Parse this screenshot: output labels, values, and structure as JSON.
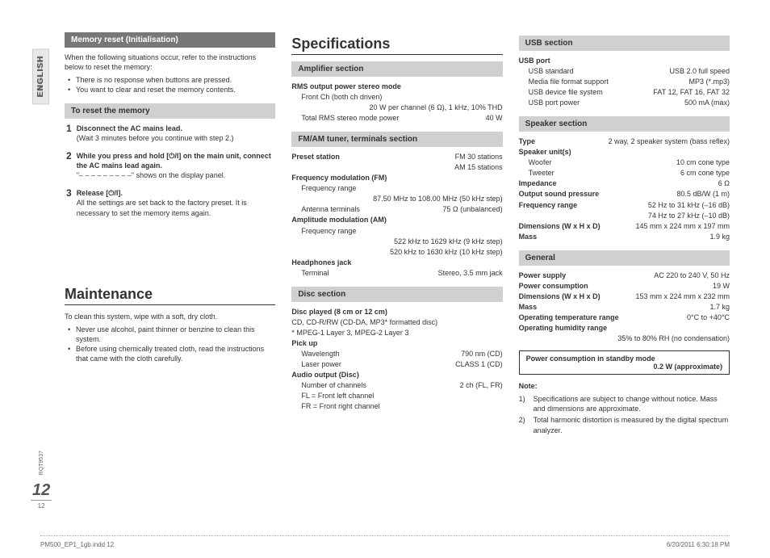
{
  "langTab": "ENGLISH",
  "col1": {
    "memReset": {
      "banner": "Memory reset (Initialisation)",
      "intro": "When the following situations occur, refer to the instructions below to reset the memory:",
      "bullets": [
        "There is no response when buttons are pressed.",
        "You want to clear and reset the memory contents."
      ],
      "subBanner": "To reset the memory",
      "steps": [
        {
          "n": "1",
          "bold": "Disconnect the AC mains lead.",
          "rest": "(Wait 3 minutes before you continue with step 2.)"
        },
        {
          "n": "2",
          "bold": "While you press and hold [⏻/I] on the main unit, connect the AC mains lead again.",
          "rest": "\"– – – – – – – – –\" shows on the display panel."
        },
        {
          "n": "3",
          "bold": "Release [⏻/I].",
          "rest": "All the settings are set back to the factory preset. It is necessary to set the memory items again."
        }
      ]
    },
    "maint": {
      "heading": "Maintenance",
      "intro": "To clean this system, wipe with a soft, dry cloth.",
      "bullets": [
        "Never use alcohol, paint thinner or benzine to clean this system.",
        "Before using chemically treated cloth, read the instructions that came with the cloth carefully."
      ]
    }
  },
  "col2": {
    "heading": "Specifications",
    "amp": {
      "banner": "Amplifier section",
      "rows": [
        {
          "l": "RMS output power stereo mode",
          "cls": "spec-head"
        },
        {
          "l": "Front Ch (both ch driven)",
          "cls": "indent"
        },
        {
          "r": "20 W per channel (6 Ω), 1 kHz, 10% THD"
        },
        {
          "l": "Total RMS stereo mode power",
          "r": "40 W",
          "cls": "indent"
        }
      ]
    },
    "tuner": {
      "banner": "FM/AM tuner, terminals section",
      "rows": [
        {
          "l": "Preset station",
          "r": "FM 30 stations",
          "cls": "spec-head"
        },
        {
          "r": "AM 15 stations"
        },
        {
          "l": "Frequency modulation (FM)",
          "cls": "spec-head"
        },
        {
          "l": "Frequency range",
          "cls": "indent"
        },
        {
          "r": "87.50 MHz to 108.00 MHz (50 kHz step)"
        },
        {
          "l": "Antenna terminals",
          "r": "75 Ω (unbalanced)",
          "cls": "indent"
        },
        {
          "l": "Amplitude modulation (AM)",
          "cls": "spec-head"
        },
        {
          "l": "Frequency range",
          "cls": "indent"
        },
        {
          "r": "522 kHz to 1629 kHz (9 kHz step)"
        },
        {
          "r": "520 kHz to 1630 kHz (10 kHz step)"
        },
        {
          "l": "Headphones jack",
          "cls": "spec-head"
        },
        {
          "l": "Terminal",
          "r": "Stereo, 3.5 mm jack",
          "cls": "indent"
        }
      ]
    },
    "disc": {
      "banner": "Disc section",
      "rows": [
        {
          "l": "Disc played (8 cm or 12 cm)",
          "cls": "spec-head"
        },
        {
          "l": "CD, CD-R/RW (CD-DA, MP3* formatted disc)"
        },
        {
          "l": "* MPEG-1 Layer 3, MPEG-2 Layer 3"
        },
        {
          "l": "Pick up",
          "cls": "spec-head"
        },
        {
          "l": "Wavelength",
          "r": "790 nm (CD)",
          "cls": "indent"
        },
        {
          "l": "Laser power",
          "r": "CLASS 1 (CD)",
          "cls": "indent"
        },
        {
          "l": "Audio output (Disc)",
          "cls": "spec-head"
        },
        {
          "l": "Number of channels",
          "r": "2 ch (FL, FR)",
          "cls": "indent"
        },
        {
          "l": "FL = Front left channel",
          "cls": "indent"
        },
        {
          "l": "FR = Front right channel",
          "cls": "indent"
        }
      ]
    }
  },
  "col3": {
    "usb": {
      "banner": "USB section",
      "rows": [
        {
          "l": "USB port",
          "cls": "spec-head"
        },
        {
          "l": "USB standard",
          "r": "USB 2.0 full speed",
          "cls": "indent"
        },
        {
          "l": "Media file format support",
          "r": "MP3 (*.mp3)",
          "cls": "indent"
        },
        {
          "l": "USB device file system",
          "r": "FAT 12, FAT 16, FAT 32",
          "cls": "indent"
        },
        {
          "l": "USB port power",
          "r": "500 mA (max)",
          "cls": "indent"
        }
      ]
    },
    "speaker": {
      "banner": "Speaker section",
      "rows": [
        {
          "l": "Type",
          "r": "2 way, 2 speaker system (bass reflex)",
          "cls": "spec-head"
        },
        {
          "l": "Speaker unit(s)",
          "cls": "spec-head"
        },
        {
          "l": "Woofer",
          "r": "10 cm cone type",
          "cls": "indent"
        },
        {
          "l": "Tweeter",
          "r": "6 cm cone type",
          "cls": "indent"
        },
        {
          "l": "Impedance",
          "r": "6 Ω",
          "cls": "spec-head"
        },
        {
          "l": "Output sound pressure",
          "r": "80.5 dB/W (1 m)",
          "cls": "spec-head"
        },
        {
          "l": "Frequency range",
          "r": "52 Hz to 31 kHz (–16 dB)",
          "cls": "spec-head"
        },
        {
          "r": "74 Hz to 27 kHz (–10 dB)"
        },
        {
          "l": "Dimensions (W x H x D)",
          "r": "145 mm x 224 mm x 197 mm",
          "cls": "spec-head"
        },
        {
          "l": "Mass",
          "r": "1.9 kg",
          "cls": "spec-head"
        }
      ]
    },
    "general": {
      "banner": "General",
      "rows": [
        {
          "l": "Power supply",
          "r": "AC 220 to 240 V, 50 Hz",
          "cls": "spec-head"
        },
        {
          "l": "Power consumption",
          "r": "19 W",
          "cls": "spec-head"
        },
        {
          "l": "Dimensions (W x H x D)",
          "r": "153 mm x 224 mm x 232 mm",
          "cls": "spec-head"
        },
        {
          "l": "Mass",
          "r": "1.7 kg",
          "cls": "spec-head"
        },
        {
          "l": "Operating temperature range",
          "r": "0°C to +40°C",
          "cls": "spec-head"
        },
        {
          "l": "Operating humidity range",
          "cls": "spec-head"
        },
        {
          "r": "35% to 80% RH (no condensation)"
        }
      ]
    },
    "box": {
      "label": "Power consumption in standby mode",
      "value": "0.2 W (approximate)"
    },
    "noteHead": "Note:",
    "notes": [
      {
        "n": "1)",
        "t": "Specifications are subject to change without notice. Mass and dimensions are approximate."
      },
      {
        "n": "2)",
        "t": "Total harmonic distortion is measured by the digital spectrum analyzer."
      }
    ]
  },
  "pageSide": {
    "rqt": "RQT9537",
    "big": "12",
    "small": "12"
  },
  "footer": {
    "file": "PM500_EP1_1gb.indd   12",
    "date": "6/20/2011   6:30:18 PM"
  }
}
